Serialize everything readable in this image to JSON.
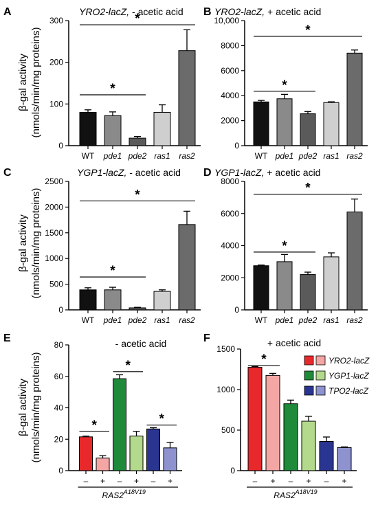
{
  "figure": {
    "ylabel_line1": "β-gal activity",
    "ylabel_line2": "(nmols/min/mg proteins)"
  },
  "chart_data": [
    {
      "type": "bar",
      "panel": "A",
      "title_gene": "YRO2-lacZ,",
      "title_rest": " - acetic acid",
      "categories": [
        "WT",
        "pde1",
        "pde2",
        "ras1",
        "ras2"
      ],
      "values": [
        80,
        72,
        18,
        80,
        228
      ],
      "errors": [
        6,
        9,
        4,
        18,
        50
      ],
      "colors": [
        "#111111",
        "#8a8a8a",
        "#5a5a5a",
        "#cfcfcf",
        "#6b6b6b"
      ],
      "ylim": [
        0,
        300
      ],
      "yticks": [
        0,
        100,
        200,
        300
      ],
      "ytick_labels": [
        "0",
        "100",
        "200",
        "300"
      ],
      "significance": [
        {
          "from": 0,
          "to": 2,
          "y": 122,
          "label": "*"
        },
        {
          "from": 0,
          "to": 4,
          "y": 290,
          "label": "*"
        }
      ]
    },
    {
      "type": "bar",
      "panel": "B",
      "title_gene": "YRO2-lacZ,",
      "title_rest": " + acetic acid",
      "categories": [
        "WT",
        "pde1",
        "pde2",
        "ras1",
        "ras2"
      ],
      "values": [
        3500,
        3750,
        2550,
        3450,
        7400
      ],
      "errors": [
        120,
        350,
        180,
        60,
        250
      ],
      "colors": [
        "#111111",
        "#8a8a8a",
        "#5a5a5a",
        "#cfcfcf",
        "#6b6b6b"
      ],
      "ylim": [
        0,
        10000
      ],
      "yticks": [
        0,
        2000,
        4000,
        6000,
        8000,
        10000
      ],
      "ytick_labels": [
        "0",
        "2000",
        "4000",
        "6000",
        "8000",
        "10,000"
      ],
      "significance": [
        {
          "from": 0,
          "to": 2,
          "y": 4350,
          "label": "*"
        },
        {
          "from": 0,
          "to": 4,
          "y": 8750,
          "label": "*"
        }
      ]
    },
    {
      "type": "bar",
      "panel": "C",
      "title_gene": "YGP1-lacZ,",
      "title_rest": " - acetic acid",
      "categories": [
        "WT",
        "pde1",
        "pde2",
        "ras1",
        "ras2"
      ],
      "values": [
        390,
        390,
        40,
        360,
        1660
      ],
      "errors": [
        40,
        50,
        10,
        30,
        260
      ],
      "colors": [
        "#111111",
        "#8a8a8a",
        "#5a5a5a",
        "#cfcfcf",
        "#6b6b6b"
      ],
      "ylim": [
        0,
        2500
      ],
      "yticks": [
        0,
        500,
        1000,
        1500,
        2000,
        2500
      ],
      "ytick_labels": [
        "0",
        "500",
        "1000",
        "1500",
        "2000",
        "2500"
      ],
      "significance": [
        {
          "from": 0,
          "to": 2,
          "y": 640,
          "label": "*"
        },
        {
          "from": 0,
          "to": 4,
          "y": 2120,
          "label": "*"
        }
      ]
    },
    {
      "type": "bar",
      "panel": "D",
      "title_gene": "YGP1-lacZ,",
      "title_rest": " + acetic acid",
      "categories": [
        "WT",
        "pde1",
        "pde2",
        "ras1",
        "ras2"
      ],
      "values": [
        2750,
        3000,
        2200,
        3300,
        6100
      ],
      "errors": [
        40,
        450,
        150,
        250,
        800
      ],
      "colors": [
        "#111111",
        "#8a8a8a",
        "#5a5a5a",
        "#cfcfcf",
        "#6b6b6b"
      ],
      "ylim": [
        0,
        8000
      ],
      "yticks": [
        0,
        2000,
        4000,
        6000,
        8000
      ],
      "ytick_labels": [
        "0",
        "2000",
        "4000",
        "6000",
        "8000"
      ],
      "significance": [
        {
          "from": 0,
          "to": 2,
          "y": 3600,
          "label": "*"
        },
        {
          "from": 0,
          "to": 4,
          "y": 7200,
          "label": "*"
        }
      ]
    },
    {
      "type": "bar",
      "panel": "E",
      "title": "- acetic acid",
      "categories": [
        "–",
        "+",
        "–",
        "+",
        "–",
        "+"
      ],
      "group_label": "RAS2",
      "group_label_sup": "A18V19",
      "values": [
        21.5,
        8,
        58.5,
        22,
        26.5,
        14.5
      ],
      "errors": [
        0.5,
        1.5,
        2.5,
        3,
        0.8,
        3.5
      ],
      "colors": [
        "#e8292b",
        "#f3a6a4",
        "#1e8a3a",
        "#b3d98c",
        "#2a3591",
        "#8e93cf"
      ],
      "ylim": [
        0,
        80
      ],
      "yticks": [
        0,
        20,
        40,
        60,
        80
      ],
      "ytick_labels": [
        "0",
        "20",
        "40",
        "60",
        "80"
      ],
      "significance": [
        {
          "from": 0,
          "to": 1,
          "y": 25,
          "label": "*"
        },
        {
          "from": 2,
          "to": 3,
          "y": 63,
          "label": "*"
        },
        {
          "from": 4,
          "to": 5,
          "y": 29,
          "label": "*"
        }
      ]
    },
    {
      "type": "bar",
      "panel": "F",
      "title": "+ acetic acid",
      "categories": [
        "–",
        "+",
        "–",
        "+",
        "–",
        "+"
      ],
      "group_label": "RAS2",
      "group_label_sup": "A18V19",
      "values": [
        1275,
        1175,
        825,
        610,
        360,
        285
      ],
      "errors": [
        10,
        25,
        45,
        60,
        55,
        8
      ],
      "colors": [
        "#e8292b",
        "#f3a6a4",
        "#1e8a3a",
        "#b3d98c",
        "#2a3591",
        "#8e93cf"
      ],
      "ylim": [
        0,
        1500
      ],
      "yticks": [
        0,
        500,
        1000,
        1500
      ],
      "ytick_labels": [
        "0",
        "500",
        "1000",
        "1500"
      ],
      "significance": [
        {
          "from": 0,
          "to": 1,
          "y": 1295,
          "label": "*"
        }
      ],
      "legend": [
        {
          "label": "YRO2-lacZ",
          "colors": [
            "#e8292b",
            "#f3a6a4"
          ]
        },
        {
          "label": "YGP1-lacZ",
          "colors": [
            "#1e8a3a",
            "#b3d98c"
          ]
        },
        {
          "label": "TPO2-lacZ",
          "colors": [
            "#2a3591",
            "#8e93cf"
          ]
        }
      ]
    }
  ]
}
